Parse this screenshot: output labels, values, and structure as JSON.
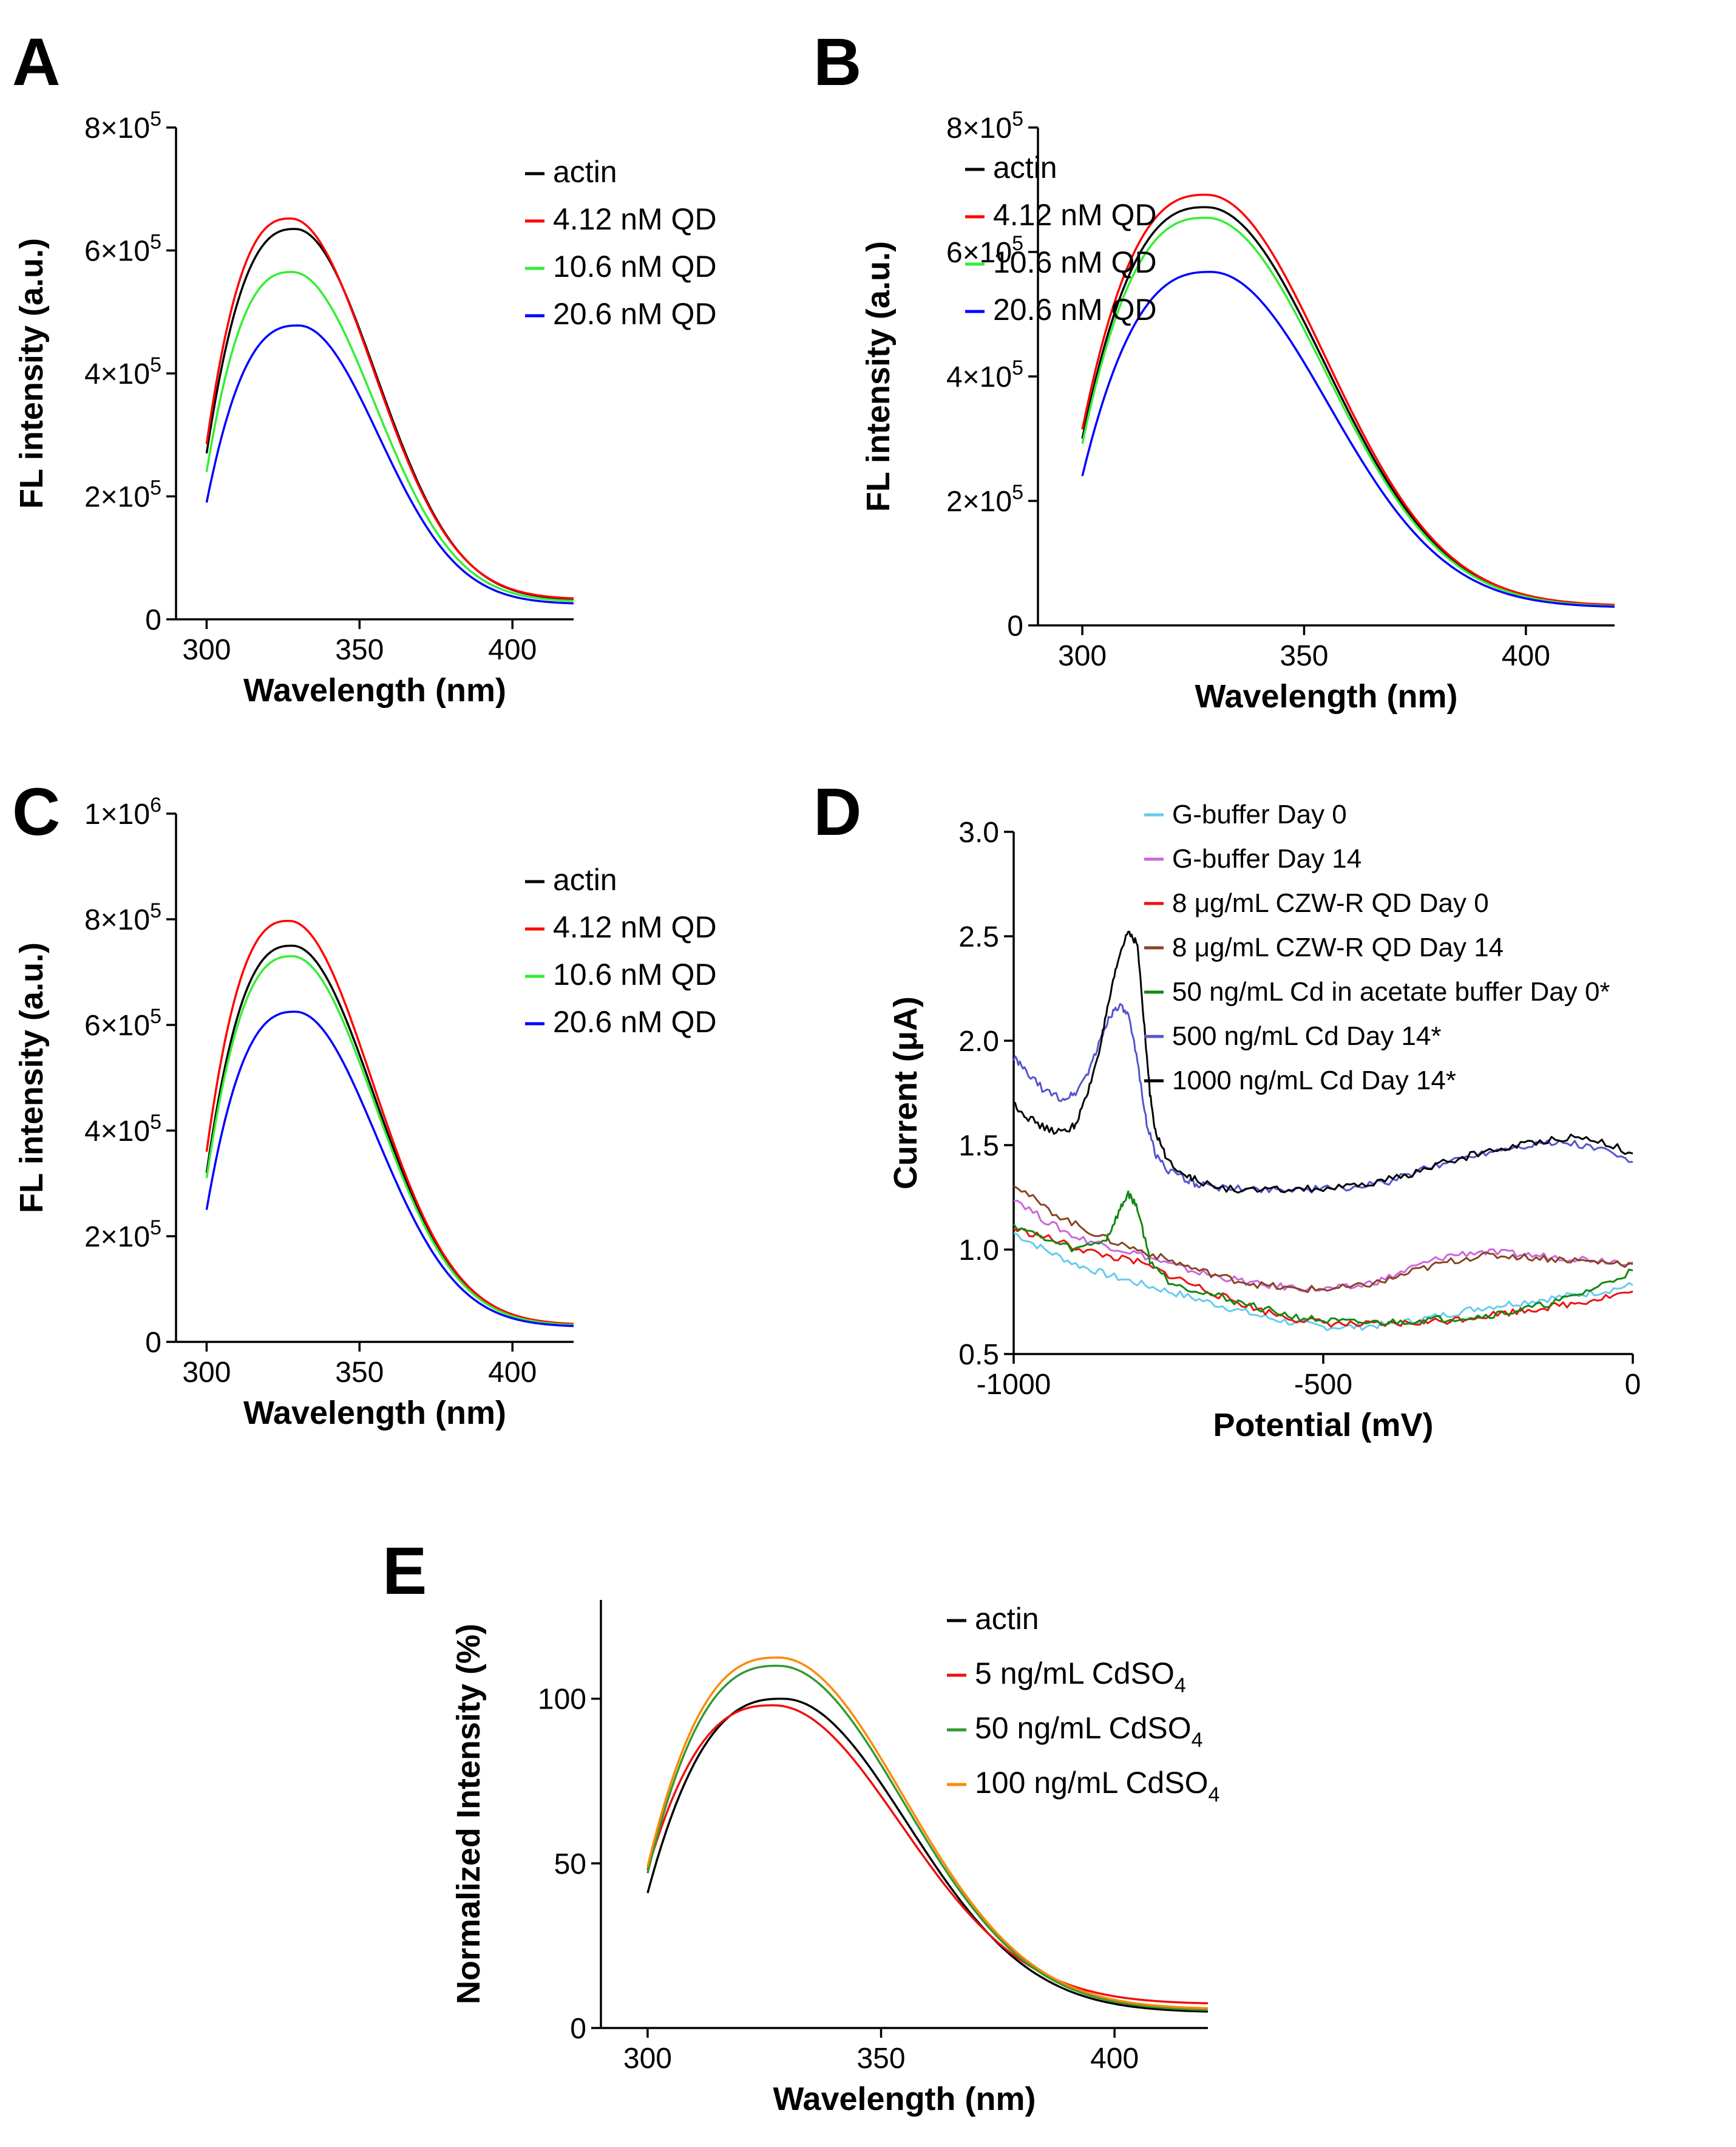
{
  "chart_data": [
    {
      "panel": "A",
      "type": "line",
      "xlabel": "Wavelength (nm)",
      "ylabel": "FL intensity (a.u.)",
      "xlim": [
        290,
        420
      ],
      "ylim": [
        0,
        800000
      ],
      "xticks": [
        300,
        350,
        400
      ],
      "yticks": [
        0,
        200000,
        400000,
        600000,
        800000
      ],
      "ytick_labels": [
        {
          "base": "0",
          "exp": ""
        },
        {
          "base": "2×10",
          "exp": "5"
        },
        {
          "base": "4×10",
          "exp": "5"
        },
        {
          "base": "6×10",
          "exp": "5"
        },
        {
          "base": "8×10",
          "exp": "5"
        }
      ],
      "legend": [
        {
          "label": "actin",
          "sub": "",
          "color": "#000000"
        },
        {
          "label": "4.12 nM QD",
          "sub": "",
          "color": "#ff0000"
        },
        {
          "label": "10.6 nM QD",
          "sub": "",
          "color": "#33ee33"
        },
        {
          "label": "20.6 nM QD",
          "sub": "",
          "color": "#0000ff"
        }
      ],
      "series": [
        {
          "name": "actin",
          "color": "#000000",
          "start": 270000,
          "peak": 635000,
          "peak_x": 329,
          "end": 33000
        },
        {
          "name": "4.12 nM QD",
          "color": "#ff0000",
          "start": 285000,
          "peak": 652000,
          "peak_x": 327.5,
          "end": 34000
        },
        {
          "name": "10.6 nM QD",
          "color": "#33ee33",
          "start": 240000,
          "peak": 565000,
          "peak_x": 328,
          "end": 30000
        },
        {
          "name": "20.6 nM QD",
          "color": "#0000ff",
          "start": 190000,
          "peak": 478000,
          "peak_x": 330,
          "end": 26000
        }
      ]
    },
    {
      "panel": "B",
      "type": "line",
      "xlabel": "Wavelength (nm)",
      "ylabel": "FL intensity (a.u.)",
      "xlim": [
        290,
        420
      ],
      "ylim": [
        0,
        800000
      ],
      "xticks": [
        300,
        350,
        400
      ],
      "yticks": [
        0,
        200000,
        400000,
        600000,
        800000
      ],
      "ytick_labels": [
        {
          "base": "0",
          "exp": ""
        },
        {
          "base": "2×10",
          "exp": "5"
        },
        {
          "base": "4×10",
          "exp": "5"
        },
        {
          "base": "6×10",
          "exp": "5"
        },
        {
          "base": "8×10",
          "exp": "5"
        }
      ],
      "legend": [
        {
          "label": "actin",
          "sub": "",
          "color": "#000000"
        },
        {
          "label": "4.12 nM QD",
          "sub": "",
          "color": "#ff0000"
        },
        {
          "label": "10.6 nM QD",
          "sub": "",
          "color": "#33ee33"
        },
        {
          "label": "20.6 nM QD",
          "sub": "",
          "color": "#0000ff"
        }
      ],
      "series": [
        {
          "name": "actin",
          "color": "#000000",
          "start": 300000,
          "peak": 672000,
          "peak_x": 328,
          "end": 32000
        },
        {
          "name": "4.12 nM QD",
          "color": "#ff0000",
          "start": 315000,
          "peak": 692000,
          "peak_x": 328,
          "end": 33000
        },
        {
          "name": "10.6 nM QD",
          "color": "#33ee33",
          "start": 292000,
          "peak": 655000,
          "peak_x": 328,
          "end": 31000
        },
        {
          "name": "20.6 nM QD",
          "color": "#0000ff",
          "start": 240000,
          "peak": 568000,
          "peak_x": 329,
          "end": 30000
        }
      ]
    },
    {
      "panel": "C",
      "type": "line",
      "xlabel": "Wavelength (nm)",
      "ylabel": "FL intensity (a.u.)",
      "xlim": [
        290,
        420
      ],
      "ylim": [
        0,
        1000000
      ],
      "xticks": [
        300,
        350,
        400
      ],
      "yticks": [
        0,
        200000,
        400000,
        600000,
        800000,
        1000000
      ],
      "ytick_labels": [
        {
          "base": "0",
          "exp": ""
        },
        {
          "base": "2×10",
          "exp": "5"
        },
        {
          "base": "4×10",
          "exp": "5"
        },
        {
          "base": "6×10",
          "exp": "5"
        },
        {
          "base": "8×10",
          "exp": "5"
        },
        {
          "base": "1×10",
          "exp": "6"
        }
      ],
      "legend": [
        {
          "label": "actin",
          "sub": "",
          "color": "#000000"
        },
        {
          "label": "4.12 nM QD",
          "sub": "",
          "color": "#ff0000"
        },
        {
          "label": "10.6 nM QD",
          "sub": "",
          "color": "#33ee33"
        },
        {
          "label": "20.6 nM QD",
          "sub": "",
          "color": "#0000ff"
        }
      ],
      "series": [
        {
          "name": "actin",
          "color": "#000000",
          "start": 320000,
          "peak": 750000,
          "peak_x": 328,
          "end": 33000
        },
        {
          "name": "4.12 nM QD",
          "color": "#ff0000",
          "start": 360000,
          "peak": 797000,
          "peak_x": 327,
          "end": 34000
        },
        {
          "name": "10.6 nM QD",
          "color": "#33ee33",
          "start": 310000,
          "peak": 730000,
          "peak_x": 328,
          "end": 32000
        },
        {
          "name": "20.6 nM QD",
          "color": "#0000ff",
          "start": 250000,
          "peak": 625000,
          "peak_x": 329,
          "end": 30000
        }
      ]
    },
    {
      "panel": "D",
      "type": "line",
      "xlabel": "Potential (mV)",
      "ylabel": "Current (μA)",
      "xlim": [
        -1000,
        0
      ],
      "ylim": [
        0.5,
        3.0
      ],
      "xticks": [
        -1000,
        -500,
        0
      ],
      "xtick_labels": [
        "-1000",
        "-500",
        "0"
      ],
      "yticks": [
        0.5,
        1.0,
        1.5,
        2.0,
        2.5,
        3.0
      ],
      "ytick_labels": [
        {
          "base": "0.5",
          "exp": ""
        },
        {
          "base": "1.0",
          "exp": ""
        },
        {
          "base": "1.5",
          "exp": ""
        },
        {
          "base": "2.0",
          "exp": ""
        },
        {
          "base": "2.5",
          "exp": ""
        },
        {
          "base": "3.0",
          "exp": ""
        }
      ],
      "legend": [
        {
          "label": "G-buffer Day 0",
          "sub": "",
          "color": "#66ccee"
        },
        {
          "label": "G-buffer Day 14",
          "sub": "",
          "color": "#cc66dd"
        },
        {
          "label": "8 μg/mL CZW-R QD Day 0",
          "sub": "",
          "color": "#ee1111"
        },
        {
          "label": "8 μg/mL CZW-R QD Day 14",
          "sub": "",
          "color": "#884422"
        },
        {
          "label": "50 ng/mL Cd in acetate buffer Day 0*",
          "sub": "",
          "color": "#118811"
        },
        {
          "label": "500 ng/mL Cd Day 14*",
          "sub": "",
          "color": "#5555cc"
        },
        {
          "label": "1000 ng/mL Cd Day 14*",
          "sub": "",
          "color": "#000000"
        }
      ],
      "series": [
        {
          "name": "G-buffer Day 0",
          "color": "#66ccee",
          "x": [
            -1000,
            -950,
            -900,
            -850,
            -800,
            -750,
            -700,
            -650,
            -600,
            -550,
            -500,
            -450,
            -400,
            -350,
            -300,
            -250,
            -200,
            -150,
            -100,
            -50,
            0
          ],
          "y": [
            1.08,
            1.0,
            0.93,
            0.88,
            0.84,
            0.8,
            0.76,
            0.72,
            0.68,
            0.65,
            0.63,
            0.63,
            0.64,
            0.66,
            0.69,
            0.72,
            0.74,
            0.76,
            0.78,
            0.8,
            0.83
          ]
        },
        {
          "name": "G-buffer Day 14",
          "color": "#cc66dd",
          "x": [
            -1000,
            -950,
            -900,
            -850,
            -800,
            -750,
            -700,
            -650,
            -600,
            -550,
            -500,
            -450,
            -400,
            -350,
            -300,
            -250,
            -200,
            -150,
            -100,
            -50,
            0
          ],
          "y": [
            1.25,
            1.14,
            1.06,
            1.02,
            0.98,
            0.93,
            0.89,
            0.86,
            0.83,
            0.82,
            0.81,
            0.82,
            0.86,
            0.92,
            0.97,
            0.99,
            0.98,
            0.97,
            0.96,
            0.95,
            0.94
          ]
        },
        {
          "name": "8 μg/mL CZW-R QD Day 0",
          "color": "#ee1111",
          "x": [
            -1000,
            -950,
            -900,
            -850,
            -800,
            -750,
            -700,
            -650,
            -600,
            -550,
            -500,
            -450,
            -400,
            -350,
            -300,
            -250,
            -200,
            -150,
            -100,
            -50,
            0
          ],
          "y": [
            1.1,
            1.06,
            1.01,
            0.97,
            0.94,
            0.88,
            0.82,
            0.76,
            0.71,
            0.67,
            0.65,
            0.64,
            0.64,
            0.65,
            0.66,
            0.68,
            0.7,
            0.72,
            0.74,
            0.77,
            0.8
          ]
        },
        {
          "name": "8 μg/mL CZW-R QD Day 14",
          "color": "#884422",
          "x": [
            -1000,
            -950,
            -900,
            -850,
            -800,
            -750,
            -700,
            -650,
            -600,
            -550,
            -500,
            -450,
            -400,
            -350,
            -300,
            -250,
            -200,
            -150,
            -100,
            -50,
            0
          ],
          "y": [
            1.32,
            1.2,
            1.12,
            1.05,
            1.0,
            0.95,
            0.9,
            0.86,
            0.83,
            0.81,
            0.81,
            0.82,
            0.85,
            0.9,
            0.94,
            0.97,
            0.97,
            0.96,
            0.95,
            0.94,
            0.93
          ]
        },
        {
          "name": "50 ng/mL Cd in acetate buffer Day 0*",
          "color": "#118811",
          "x": [
            -1000,
            -950,
            -900,
            -850,
            -830,
            -815,
            -800,
            -780,
            -750,
            -700,
            -650,
            -600,
            -550,
            -500,
            -450,
            -400,
            -350,
            -300,
            -250,
            -200,
            -150,
            -100,
            -50,
            0
          ],
          "y": [
            1.12,
            1.05,
            1.0,
            1.05,
            1.18,
            1.27,
            1.2,
            0.95,
            0.85,
            0.8,
            0.76,
            0.72,
            0.68,
            0.66,
            0.65,
            0.65,
            0.66,
            0.67,
            0.68,
            0.7,
            0.73,
            0.77,
            0.83,
            0.9
          ]
        },
        {
          "name": "500 ng/mL Cd Day 14*",
          "color": "#5555cc",
          "x": [
            -1000,
            -980,
            -950,
            -920,
            -900,
            -880,
            -860,
            -845,
            -830,
            -815,
            -800,
            -785,
            -770,
            -750,
            -720,
            -700,
            -650,
            -600,
            -550,
            -500,
            -450,
            -400,
            -350,
            -300,
            -250,
            -200,
            -150,
            -100,
            -50,
            0
          ],
          "y": [
            1.92,
            1.85,
            1.76,
            1.72,
            1.75,
            1.85,
            2.0,
            2.12,
            2.17,
            2.12,
            1.9,
            1.6,
            1.45,
            1.38,
            1.33,
            1.31,
            1.29,
            1.29,
            1.29,
            1.29,
            1.3,
            1.32,
            1.37,
            1.42,
            1.46,
            1.49,
            1.51,
            1.51,
            1.48,
            1.42
          ]
        },
        {
          "name": "1000 ng/mL Cd Day 14*",
          "color": "#000000",
          "x": [
            -1000,
            -980,
            -950,
            -920,
            -900,
            -880,
            -860,
            -845,
            -830,
            -815,
            -800,
            -790,
            -780,
            -770,
            -750,
            -720,
            -700,
            -650,
            -600,
            -550,
            -500,
            -450,
            -400,
            -350,
            -300,
            -250,
            -200,
            -150,
            -100,
            -50,
            0
          ],
          "y": [
            1.7,
            1.64,
            1.58,
            1.56,
            1.6,
            1.75,
            1.98,
            2.2,
            2.4,
            2.53,
            2.46,
            2.1,
            1.75,
            1.55,
            1.42,
            1.36,
            1.32,
            1.29,
            1.28,
            1.29,
            1.29,
            1.3,
            1.33,
            1.37,
            1.42,
            1.46,
            1.49,
            1.52,
            1.54,
            1.52,
            1.46
          ]
        }
      ]
    },
    {
      "panel": "E",
      "type": "line",
      "xlabel": "Wavelength (nm)",
      "ylabel": "Normalized Intensity (%)",
      "xlim": [
        290,
        420
      ],
      "ylim": [
        0,
        130
      ],
      "xticks": [
        300,
        350,
        400
      ],
      "yticks": [
        0,
        50,
        100
      ],
      "ytick_labels": [
        {
          "base": "0",
          "exp": ""
        },
        {
          "base": "50",
          "exp": ""
        },
        {
          "base": "100",
          "exp": ""
        }
      ],
      "legend": [
        {
          "label": "actin",
          "sub": "",
          "color": "#000000"
        },
        {
          "label": "5 ng/mL CdSO",
          "sub": "4",
          "color": "#ee1111"
        },
        {
          "label": "50 ng/mL CdSO",
          "sub": "4",
          "color": "#339933"
        },
        {
          "label": "100 ng/mL CdSO",
          "sub": "4",
          "color": "#ff8800"
        }
      ],
      "series": [
        {
          "name": "actin",
          "color": "#000000",
          "start": 41,
          "peak": 100,
          "peak_x": 329,
          "end": 5
        },
        {
          "name": "5 ng/mL CdSO4",
          "color": "#ee1111",
          "start": 48,
          "peak": 98,
          "peak_x": 327,
          "end": 7.5
        },
        {
          "name": "50 ng/mL CdSO4",
          "color": "#339933",
          "start": 47,
          "peak": 110,
          "peak_x": 328,
          "end": 5.5
        },
        {
          "name": "100 ng/mL CdSO4",
          "color": "#ff8800",
          "start": 49,
          "peak": 112.5,
          "peak_x": 328,
          "end": 6
        }
      ]
    }
  ]
}
